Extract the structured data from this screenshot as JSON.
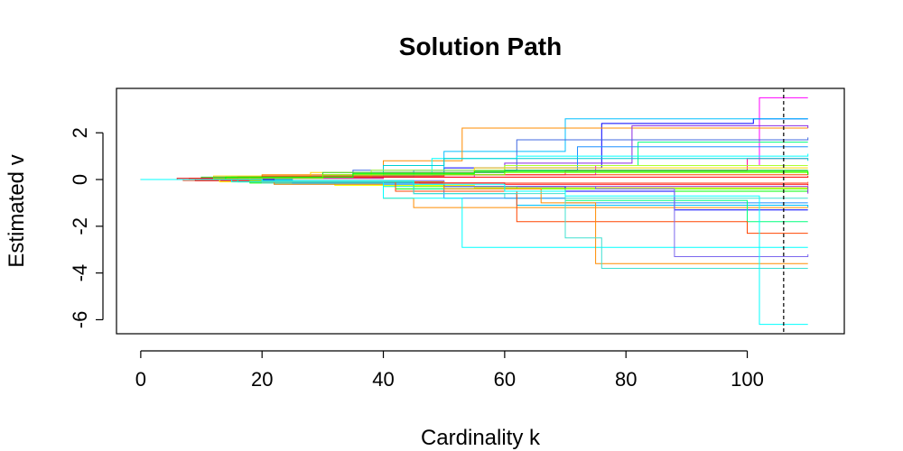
{
  "chart_data": {
    "type": "line",
    "title": "Solution Path",
    "xlabel": "Cardinality k",
    "ylabel": "Estimated v",
    "xlim": [
      -4,
      116
    ],
    "ylim": [
      -6.6,
      3.9
    ],
    "xticks": [
      0,
      20,
      40,
      60,
      80,
      100
    ],
    "yticks": [
      -6,
      -4,
      -2,
      0,
      2
    ],
    "vertical_line": {
      "x": 106,
      "style": "dashed"
    },
    "grid": false,
    "legend": "none",
    "series": [
      {
        "color": "#FF00FF",
        "x": [
          0,
          12,
          30,
          55,
          75,
          102,
          110
        ],
        "y": [
          0,
          0.05,
          0.1,
          0.2,
          0.6,
          3.5,
          3.5
        ]
      },
      {
        "color": "#0000FF",
        "x": [
          0,
          10,
          25,
          50,
          76,
          101,
          110
        ],
        "y": [
          0,
          0.05,
          0.15,
          0.5,
          2.4,
          2.6,
          2.6
        ]
      },
      {
        "color": "#00BFFF",
        "x": [
          0,
          15,
          35,
          50,
          70,
          88,
          110
        ],
        "y": [
          0,
          0.1,
          0.3,
          1.2,
          2.6,
          2.6,
          2.6
        ]
      },
      {
        "color": "#FF8C00",
        "x": [
          0,
          20,
          40,
          53,
          75,
          110
        ],
        "y": [
          0,
          0.2,
          0.8,
          2.2,
          2.2,
          2.2
        ]
      },
      {
        "color": "#8A2BE2",
        "x": [
          0,
          15,
          40,
          60,
          81,
          110
        ],
        "y": [
          0,
          0.05,
          0.3,
          0.7,
          2.3,
          2.2
        ]
      },
      {
        "color": "#4169E1",
        "x": [
          0,
          12,
          35,
          62,
          76,
          110
        ],
        "y": [
          0,
          0.1,
          0.4,
          1.7,
          1.7,
          1.8
        ]
      },
      {
        "color": "#00FF7F",
        "x": [
          0,
          15,
          40,
          60,
          82,
          110
        ],
        "y": [
          0,
          0.05,
          0.2,
          0.6,
          1.6,
          1.6
        ]
      },
      {
        "color": "#1E90FF",
        "x": [
          0,
          18,
          45,
          72,
          110
        ],
        "y": [
          0,
          0.1,
          0.4,
          1.4,
          1.4
        ]
      },
      {
        "color": "#00FFFF",
        "x": [
          0,
          20,
          48,
          62,
          110
        ],
        "y": [
          0,
          0.15,
          0.9,
          1.0,
          1.1
        ]
      },
      {
        "color": "#FF1493",
        "x": [
          0,
          14,
          40,
          70,
          100,
          110
        ],
        "y": [
          0,
          0.05,
          0.2,
          0.4,
          0.9,
          0.9
        ]
      },
      {
        "color": "#00CED1",
        "x": [
          0,
          20,
          40,
          50,
          110
        ],
        "y": [
          0,
          0.15,
          0.6,
          0.9,
          0.8
        ]
      },
      {
        "color": "#ADFF2F",
        "x": [
          0,
          18,
          38,
          60,
          110
        ],
        "y": [
          0,
          0.1,
          0.4,
          0.6,
          0.6
        ]
      },
      {
        "color": "#FFD700",
        "x": [
          0,
          12,
          28,
          55,
          110
        ],
        "y": [
          0,
          0.15,
          0.3,
          0.5,
          0.5
        ]
      },
      {
        "color": "#32CD32",
        "x": [
          0,
          10,
          30,
          60,
          110
        ],
        "y": [
          0,
          0.1,
          0.3,
          0.4,
          0.4
        ]
      },
      {
        "color": "#FF4500",
        "x": [
          0,
          8,
          20,
          50,
          110
        ],
        "y": [
          0,
          0.05,
          0.15,
          0.2,
          0.3
        ]
      },
      {
        "color": "#FF0000",
        "x": [
          0,
          6,
          16,
          40,
          110
        ],
        "y": [
          0,
          0.05,
          0.1,
          0.1,
          0.15
        ]
      },
      {
        "color": "#7FFF00",
        "x": [
          0,
          12,
          30,
          60,
          110
        ],
        "y": [
          0,
          0.05,
          0.2,
          0.3,
          0.25
        ]
      },
      {
        "color": "#00FF00",
        "x": [
          0,
          14,
          35,
          55,
          110
        ],
        "y": [
          0,
          0.1,
          0.25,
          0.35,
          0.2
        ]
      },
      {
        "color": "#FF6347",
        "x": [
          0,
          7,
          22,
          46,
          110
        ],
        "y": [
          0,
          -0.05,
          -0.1,
          -0.15,
          -0.1
        ]
      },
      {
        "color": "#FF0000",
        "x": [
          0,
          9,
          25,
          60,
          110
        ],
        "y": [
          0,
          -0.05,
          -0.15,
          -0.2,
          -0.25
        ]
      },
      {
        "color": "#FFFF00",
        "x": [
          0,
          13,
          32,
          55,
          110
        ],
        "y": [
          0,
          -0.1,
          -0.25,
          -0.35,
          -0.35
        ]
      },
      {
        "color": "#00FA9A",
        "x": [
          0,
          16,
          40,
          60,
          110
        ],
        "y": [
          0,
          -0.1,
          -0.3,
          -0.4,
          -0.4
        ]
      },
      {
        "color": "#00FF00",
        "x": [
          0,
          18,
          42,
          70,
          110
        ],
        "y": [
          0,
          -0.15,
          -0.4,
          -0.5,
          -0.5
        ]
      },
      {
        "color": "#8A2BE2",
        "x": [
          0,
          20,
          50,
          65,
          110
        ],
        "y": [
          0,
          -0.1,
          -0.3,
          -0.3,
          -0.6
        ]
      },
      {
        "color": "#40E0D0",
        "x": [
          0,
          20,
          45,
          60,
          110
        ],
        "y": [
          0,
          -0.15,
          -0.6,
          -0.8,
          -0.8
        ]
      },
      {
        "color": "#1E90FF",
        "x": [
          0,
          22,
          50,
          70,
          110
        ],
        "y": [
          0,
          -0.2,
          -0.8,
          -1.0,
          -1.0
        ]
      },
      {
        "color": "#00BFFF",
        "x": [
          0,
          25,
          45,
          62,
          110
        ],
        "y": [
          0,
          -0.15,
          -0.6,
          -1.1,
          -1.2
        ]
      },
      {
        "color": "#FF8C00",
        "x": [
          0,
          22,
          40,
          45,
          110
        ],
        "y": [
          0,
          -0.2,
          -0.8,
          -1.2,
          -1.2
        ]
      },
      {
        "color": "#0000FF",
        "x": [
          0,
          22,
          50,
          70,
          88,
          110
        ],
        "y": [
          0,
          -0.1,
          -0.3,
          -0.5,
          -1.3,
          -1.3
        ]
      },
      {
        "color": "#00FF7F",
        "x": [
          0,
          20,
          45,
          70,
          100,
          110
        ],
        "y": [
          0,
          -0.1,
          -0.4,
          -0.9,
          -1.8,
          -1.8
        ]
      },
      {
        "color": "#FF4500",
        "x": [
          0,
          18,
          42,
          62,
          100,
          110
        ],
        "y": [
          0,
          -0.1,
          -0.5,
          -1.8,
          -2.3,
          -2.3
        ]
      },
      {
        "color": "#7FFF00",
        "x": [
          0,
          18,
          45,
          62,
          110
        ],
        "y": [
          0,
          -0.05,
          -0.3,
          -0.4,
          -0.4
        ]
      },
      {
        "color": "#00FFFF",
        "x": [
          0,
          15,
          40,
          53,
          110
        ],
        "y": [
          0,
          -0.1,
          -0.8,
          -2.9,
          -2.9
        ]
      },
      {
        "color": "#7B68EE",
        "x": [
          0,
          20,
          50,
          75,
          88,
          110
        ],
        "y": [
          0,
          -0.05,
          -0.3,
          -0.4,
          -3.3,
          -3.2
        ]
      },
      {
        "color": "#FF8C00",
        "x": [
          0,
          20,
          50,
          66,
          75,
          110
        ],
        "y": [
          0,
          -0.1,
          -0.4,
          -1.0,
          -3.6,
          -3.6
        ]
      },
      {
        "color": "#40E0D0",
        "x": [
          0,
          20,
          45,
          70,
          76,
          110
        ],
        "y": [
          0,
          -0.1,
          -0.6,
          -2.5,
          -3.8,
          -3.8
        ]
      },
      {
        "color": "#00FFFF",
        "x": [
          0,
          20,
          45,
          60,
          70,
          102,
          110
        ],
        "y": [
          0,
          -0.05,
          -0.2,
          -0.5,
          -0.7,
          -6.2,
          -6.2
        ]
      }
    ]
  }
}
